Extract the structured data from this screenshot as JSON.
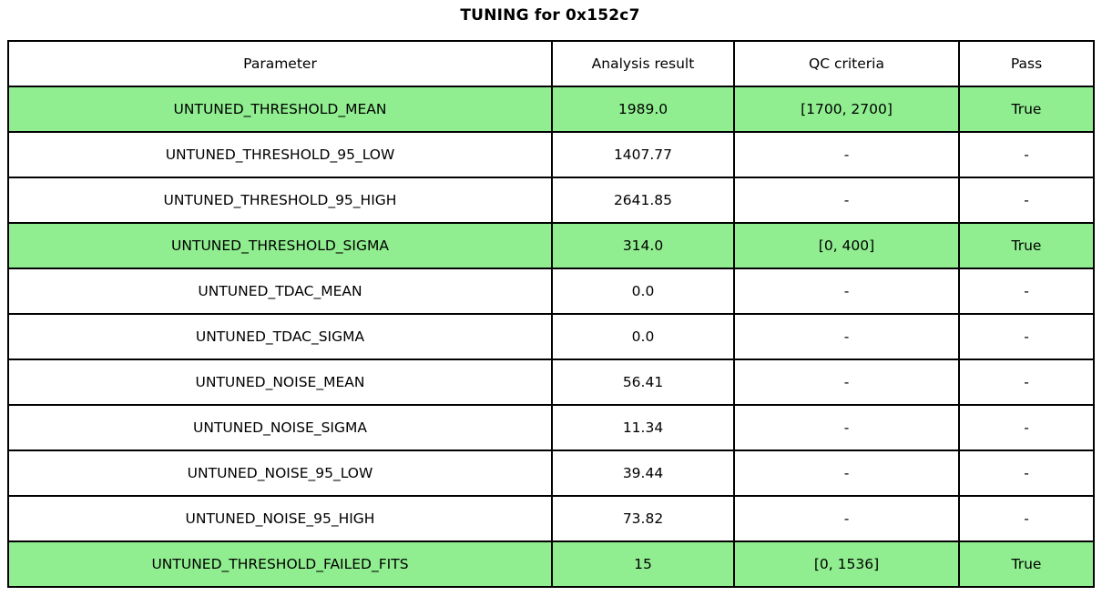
{
  "chart_data": {
    "type": "table",
    "title": "TUNING for 0x152c7",
    "columns": [
      "Parameter",
      "Analysis result",
      "QC criteria",
      "Pass"
    ],
    "rows": [
      [
        "UNTUNED_THRESHOLD_MEAN",
        "1989.0",
        "[1700, 2700]",
        "True"
      ],
      [
        "UNTUNED_THRESHOLD_95_LOW",
        "1407.77",
        "-",
        "-"
      ],
      [
        "UNTUNED_THRESHOLD_95_HIGH",
        "2641.85",
        "-",
        "-"
      ],
      [
        "UNTUNED_THRESHOLD_SIGMA",
        "314.0",
        "[0, 400]",
        "True"
      ],
      [
        "UNTUNED_TDAC_MEAN",
        "0.0",
        "-",
        "-"
      ],
      [
        "UNTUNED_TDAC_SIGMA",
        "0.0",
        "-",
        "-"
      ],
      [
        "UNTUNED_NOISE_MEAN",
        "56.41",
        "-",
        "-"
      ],
      [
        "UNTUNED_NOISE_SIGMA",
        "11.34",
        "-",
        "-"
      ],
      [
        "UNTUNED_NOISE_95_LOW",
        "39.44",
        "-",
        "-"
      ],
      [
        "UNTUNED_NOISE_95_HIGH",
        "73.82",
        "-",
        "-"
      ],
      [
        "UNTUNED_THRESHOLD_FAILED_FITS",
        "15",
        "[0, 1536]",
        "True"
      ]
    ],
    "highlighted_rows": [
      0,
      3,
      10
    ],
    "highlight_color": "#90EE90",
    "border_color": "#000000",
    "background_color": "#FFFFFF",
    "layout": {
      "legend": "none",
      "grid": true,
      "header_background": "#FFFFFF"
    }
  }
}
